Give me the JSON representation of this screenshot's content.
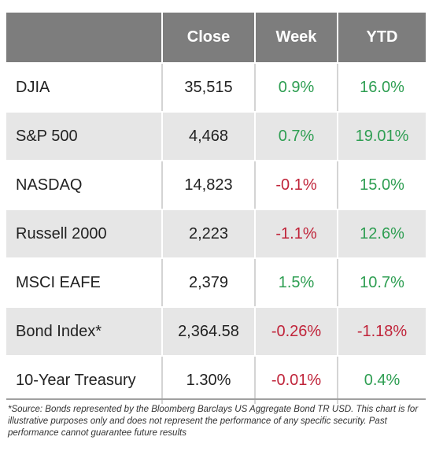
{
  "table": {
    "corner": "",
    "headers": [
      "Close",
      "Week",
      "YTD"
    ],
    "rows": [
      {
        "name": "DJIA",
        "close": "35,515",
        "week": "0.9%",
        "ytd": "16.0%",
        "week_dir": "up",
        "ytd_dir": "up"
      },
      {
        "name": "S&P 500",
        "close": "4,468",
        "week": "0.7%",
        "ytd": "19.01%",
        "week_dir": "up",
        "ytd_dir": "up"
      },
      {
        "name": "NASDAQ",
        "close": "14,823",
        "week": "-0.1%",
        "ytd": "15.0%",
        "week_dir": "down",
        "ytd_dir": "up"
      },
      {
        "name": "Russell 2000",
        "close": "2,223",
        "week": "-1.1%",
        "ytd": "12.6%",
        "week_dir": "down",
        "ytd_dir": "up"
      },
      {
        "name": "MSCI EAFE",
        "close": "2,379",
        "week": "1.5%",
        "ytd": "10.7%",
        "week_dir": "up",
        "ytd_dir": "up"
      },
      {
        "name": "Bond Index*",
        "close": "2,364.58",
        "week": "-0.26%",
        "ytd": "-1.18%",
        "week_dir": "down",
        "ytd_dir": "down"
      },
      {
        "name": "10-Year Treasury",
        "close": "1.30%",
        "week": "-0.01%",
        "ytd": "0.4%",
        "week_dir": "down",
        "ytd_dir": "up"
      }
    ]
  },
  "colors": {
    "header_bg": "#7d7d7d",
    "stripe_bg": "#e6e6e6",
    "positive": "#2e9e52",
    "negative": "#c0243a"
  },
  "footnote": "*Source: Bonds represented by the Bloomberg Barclays US Aggregate Bond TR USD.  This chart is for illustrative purposes only and does not represent the performance of any specific security. Past performance cannot guarantee future results"
}
